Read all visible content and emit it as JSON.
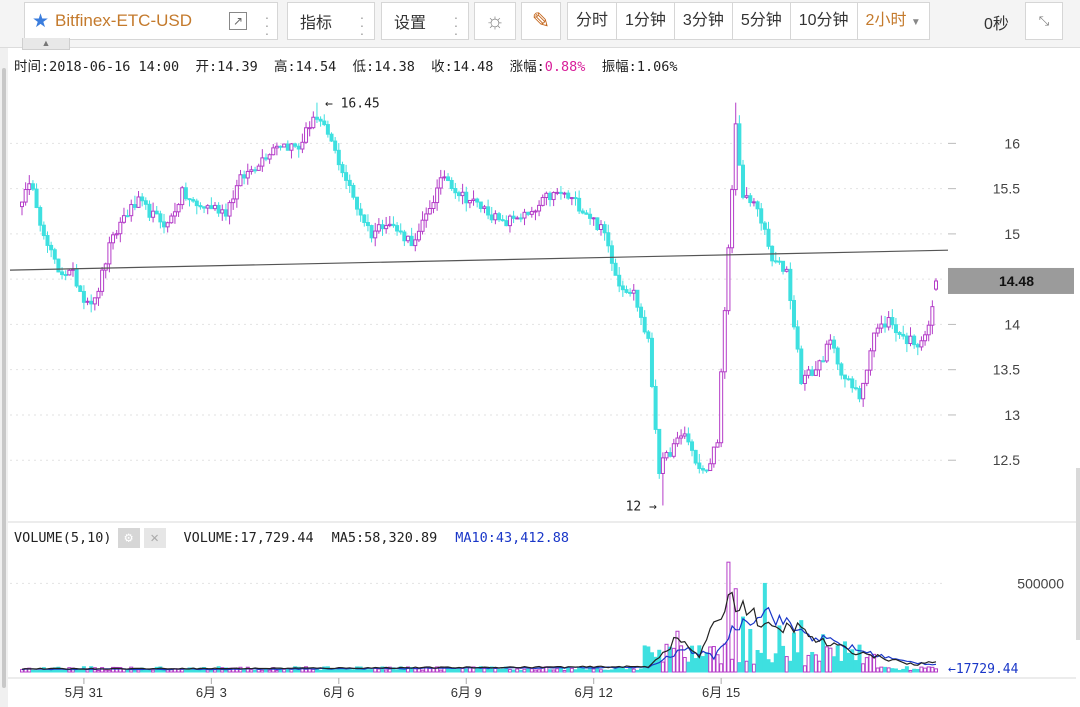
{
  "toolbar": {
    "symbol": "Bitfinex-ETC-USD",
    "indicators_label": "指标",
    "settings_label": "设置",
    "timeframes": [
      "分时",
      "1分钟",
      "3分钟",
      "5分钟",
      "10分钟",
      "2小时"
    ],
    "active_timeframe": "2小时",
    "countdown": "0秒"
  },
  "info": {
    "time_label": "时间:",
    "time": "2018-06-16 14:00",
    "open_label": "开:",
    "open": "14.39",
    "high_label": "高:",
    "high": "14.54",
    "low_label": "低:",
    "low": "14.38",
    "close_label": "收:",
    "close": "14.48",
    "change_label": "涨幅:",
    "change": "0.88%",
    "amplitude_label": "振幅:",
    "amplitude": "1.06%"
  },
  "volume": {
    "title": "VOLUME(5,10)",
    "value_text": "VOLUME:17,729.44",
    "ma5_text": "MA5:58,320.89",
    "ma10_text": "MA10:43,412.88"
  },
  "colors": {
    "up": "#b43cc8",
    "down": "#3ee0e0",
    "ma5": "#222222",
    "ma10": "#1a37c8",
    "trendline": "#555555",
    "accent": "#c47a2c",
    "price_tag": "#9b9b9b"
  },
  "chart_data": {
    "type": "candlestick",
    "price_axis_ticks": [
      16,
      15.5,
      15,
      14.5,
      14,
      13.5,
      13,
      12.5
    ],
    "price_range": [
      11.95,
      16.7
    ],
    "current_price": "14.48",
    "max_annotation": "16.45",
    "min_annotation": "12",
    "volume_axis_ticks": [
      "500000"
    ],
    "volume_range": [
      0,
      700000
    ],
    "current_volume": "17729.44",
    "x_labels": [
      "5月 31",
      "6月 3",
      "6月 6",
      "6月 9",
      "6月 12",
      "6月 15"
    ],
    "trendline": {
      "start_price": 14.6,
      "end_price": 14.82
    },
    "close_keypoints": [
      [
        0,
        15.4
      ],
      [
        3,
        15.55
      ],
      [
        6,
        14.95
      ],
      [
        10,
        14.6
      ],
      [
        14,
        14.55
      ],
      [
        17,
        14.3
      ],
      [
        20,
        14.25
      ],
      [
        24,
        14.85
      ],
      [
        28,
        15.2
      ],
      [
        32,
        15.35
      ],
      [
        36,
        15.2
      ],
      [
        40,
        15.1
      ],
      [
        44,
        15.45
      ],
      [
        48,
        15.3
      ],
      [
        52,
        15.3
      ],
      [
        56,
        15.25
      ],
      [
        60,
        15.6
      ],
      [
        64,
        15.75
      ],
      [
        70,
        16.0
      ],
      [
        76,
        15.95
      ],
      [
        80,
        16.3
      ],
      [
        84,
        16.1
      ],
      [
        88,
        15.7
      ],
      [
        92,
        15.3
      ],
      [
        96,
        15.0
      ],
      [
        100,
        15.15
      ],
      [
        104,
        15.0
      ],
      [
        108,
        14.9
      ],
      [
        112,
        15.3
      ],
      [
        116,
        15.65
      ],
      [
        120,
        15.45
      ],
      [
        124,
        15.35
      ],
      [
        128,
        15.25
      ],
      [
        132,
        15.1
      ],
      [
        136,
        15.2
      ],
      [
        140,
        15.2
      ],
      [
        144,
        15.4
      ],
      [
        148,
        15.45
      ],
      [
        152,
        15.35
      ],
      [
        156,
        15.2
      ],
      [
        160,
        15.0
      ],
      [
        164,
        14.45
      ],
      [
        168,
        14.35
      ],
      [
        172,
        13.8
      ],
      [
        175,
        12.4
      ],
      [
        178,
        12.6
      ],
      [
        182,
        12.8
      ],
      [
        186,
        12.4
      ],
      [
        188,
        12.35
      ],
      [
        191,
        12.75
      ],
      [
        194,
        14.8
      ],
      [
        196,
        16.2
      ],
      [
        198,
        15.4
      ],
      [
        202,
        15.3
      ],
      [
        206,
        14.7
      ],
      [
        210,
        14.6
      ],
      [
        214,
        13.4
      ],
      [
        218,
        13.5
      ],
      [
        222,
        13.8
      ],
      [
        226,
        13.4
      ],
      [
        230,
        13.2
      ],
      [
        234,
        13.9
      ],
      [
        238,
        14.05
      ],
      [
        242,
        13.85
      ],
      [
        246,
        13.8
      ],
      [
        249,
        13.95
      ],
      [
        251,
        14.48
      ]
    ],
    "volume_spikes": {
      "194": 620000,
      "196": 470000,
      "198": 310000,
      "204": 500000,
      "180": 230000,
      "178": 140000,
      "214": 290000,
      "208": 260000,
      "220": 210000,
      "226": 170000,
      "212": 220000,
      "200": 240000
    },
    "ma5_keypoints": [
      [
        0,
        18000
      ],
      [
        60,
        20000
      ],
      [
        172,
        30000
      ],
      [
        180,
        190000
      ],
      [
        186,
        90000
      ],
      [
        194,
        420000
      ],
      [
        198,
        380000
      ],
      [
        202,
        300000
      ],
      [
        206,
        230000
      ],
      [
        212,
        260000
      ],
      [
        218,
        180000
      ],
      [
        226,
        130000
      ],
      [
        234,
        90000
      ],
      [
        245,
        40000
      ],
      [
        251,
        58320.89
      ]
    ],
    "ma10_keypoints": [
      [
        0,
        15000
      ],
      [
        60,
        16000
      ],
      [
        172,
        26000
      ],
      [
        182,
        130000
      ],
      [
        190,
        85000
      ],
      [
        196,
        260000
      ],
      [
        204,
        350000
      ],
      [
        210,
        270000
      ],
      [
        216,
        210000
      ],
      [
        224,
        160000
      ],
      [
        232,
        110000
      ],
      [
        242,
        60000
      ],
      [
        251,
        43412.88
      ]
    ]
  }
}
